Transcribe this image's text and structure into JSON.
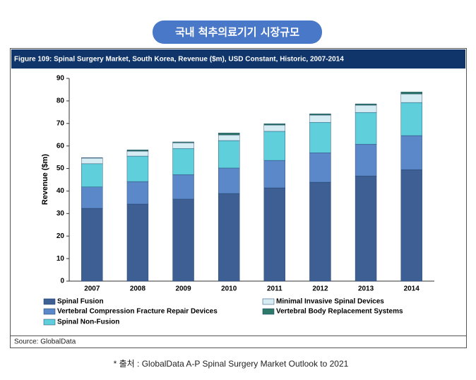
{
  "header_badge": "국내 척추의료기기 시장규모",
  "footnote": "* 출처 : GlobalData A-P Spinal Surgery Market Outlook to 2021",
  "chart_data": {
    "type": "stacked_bar",
    "title": "Figure 109:   Spinal Surgery Market, South Korea, Revenue ($m), USD Constant, Historic, 2007-2014",
    "y_label": "Revenue ($m)",
    "source": "Source: GlobalData",
    "categories": [
      "2007",
      "2008",
      "2009",
      "2010",
      "2011",
      "2012",
      "2013",
      "2014"
    ],
    "series": [
      {
        "name": "Spinal Fusion",
        "color": "#3d5f93",
        "values": [
          32.3,
          34.2,
          36.4,
          38.9,
          41.4,
          43.9,
          46.7,
          49.5
        ]
      },
      {
        "name": "Vertebral Compression Fracture Repair Devices",
        "color": "#5b88c8",
        "values": [
          9.5,
          10.0,
          10.9,
          11.3,
          12.2,
          13.1,
          14.1,
          15.1
        ]
      },
      {
        "name": "Spinal Non-Fusion",
        "color": "#5fcfdb",
        "values": [
          10.3,
          11.3,
          11.6,
          12.2,
          12.9,
          13.5,
          14.1,
          14.7
        ]
      },
      {
        "name": "Minimal Invasive Spinal Devices",
        "color": "#d5ecf3",
        "values": [
          2.5,
          2.2,
          2.5,
          2.5,
          2.8,
          3.2,
          3.2,
          3.8
        ]
      },
      {
        "name": "Vertebral Body Replacement Systems",
        "color": "#2e7a68",
        "values": [
          0.2,
          0.6,
          0.4,
          0.9,
          0.6,
          0.6,
          0.6,
          0.9
        ]
      }
    ],
    "ylim": [
      0,
      90
    ],
    "yticks": [
      0,
      10,
      20,
      30,
      40,
      50,
      60,
      70,
      80,
      90
    ]
  }
}
